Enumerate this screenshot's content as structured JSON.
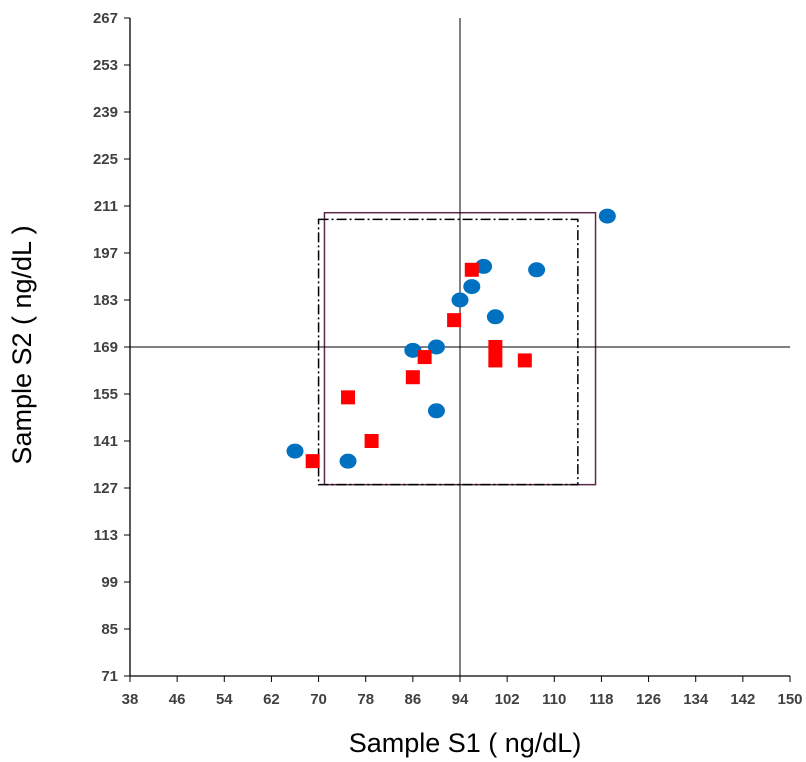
{
  "chart_data": {
    "type": "scatter",
    "title": "",
    "xlabel": "Sample S1 ( ng/dL)",
    "ylabel": "Sample S2 ( ng/dL )",
    "xlim": [
      38,
      150
    ],
    "ylim": [
      71,
      267
    ],
    "xticks": [
      38,
      46,
      54,
      62,
      70,
      78,
      86,
      94,
      102,
      110,
      118,
      126,
      134,
      142,
      150
    ],
    "yticks": [
      71,
      85,
      99,
      113,
      127,
      141,
      155,
      169,
      183,
      197,
      211,
      225,
      239,
      253,
      267
    ],
    "grid": false,
    "legend": "none",
    "reference_lines": {
      "x": 94,
      "y": 169
    },
    "boxes": [
      {
        "style": "solid",
        "color": "#5a2a4a",
        "x": [
          71,
          117
        ],
        "y": [
          128,
          209
        ]
      },
      {
        "style": "dash-dot",
        "color": "#000000",
        "x": [
          70,
          114
        ],
        "y": [
          128,
          207
        ]
      }
    ],
    "series": [
      {
        "marker": "circle",
        "color": "#0070c0",
        "points": [
          [
            66,
            138
          ],
          [
            75,
            135
          ],
          [
            86,
            168
          ],
          [
            90,
            169
          ],
          [
            90,
            150
          ],
          [
            94,
            183
          ],
          [
            96,
            187
          ],
          [
            98,
            193
          ],
          [
            100,
            178
          ],
          [
            107,
            192
          ],
          [
            119,
            208
          ]
        ]
      },
      {
        "marker": "square",
        "color": "#ff0000",
        "points": [
          [
            69,
            135
          ],
          [
            75,
            154
          ],
          [
            79,
            141
          ],
          [
            86,
            160
          ],
          [
            88,
            166
          ],
          [
            93,
            177
          ],
          [
            96,
            192
          ],
          [
            100,
            169
          ],
          [
            100,
            165
          ],
          [
            105,
            165
          ]
        ]
      }
    ]
  }
}
